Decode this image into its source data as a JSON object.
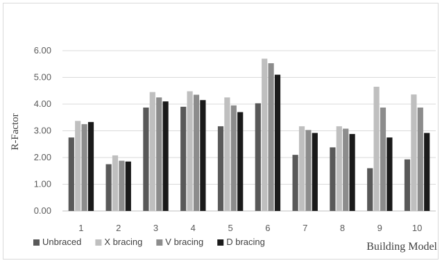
{
  "chart_data": {
    "type": "bar",
    "title": "",
    "xlabel": "Building Model",
    "ylabel": "R-Factor",
    "ylim": [
      0,
      6
    ],
    "yticks": [
      "0.00",
      "1.00",
      "2.00",
      "3.00",
      "4.00",
      "5.00",
      "6.00"
    ],
    "categories": [
      "1",
      "2",
      "3",
      "4",
      "5",
      "6",
      "7",
      "8",
      "9",
      "10"
    ],
    "grid": true,
    "legend_position": "bottom-left",
    "series": [
      {
        "name": "Unbraced",
        "color": "#595959",
        "values": [
          2.75,
          1.75,
          3.87,
          3.9,
          3.17,
          4.03,
          2.1,
          2.38,
          1.6,
          1.93
        ]
      },
      {
        "name": "X bracing",
        "color": "#bfbfbf",
        "values": [
          3.37,
          2.08,
          4.45,
          4.48,
          4.25,
          5.7,
          3.17,
          3.17,
          4.65,
          4.36
        ]
      },
      {
        "name": "V bracing",
        "color": "#8c8c8c",
        "values": [
          3.25,
          1.88,
          4.25,
          4.35,
          3.95,
          5.53,
          3.03,
          3.08,
          3.87,
          3.87
        ]
      },
      {
        "name": "D bracing",
        "color": "#1a1a1a",
        "values": [
          3.33,
          1.85,
          4.1,
          4.15,
          3.7,
          5.1,
          2.92,
          2.88,
          2.75,
          2.92
        ]
      }
    ]
  }
}
